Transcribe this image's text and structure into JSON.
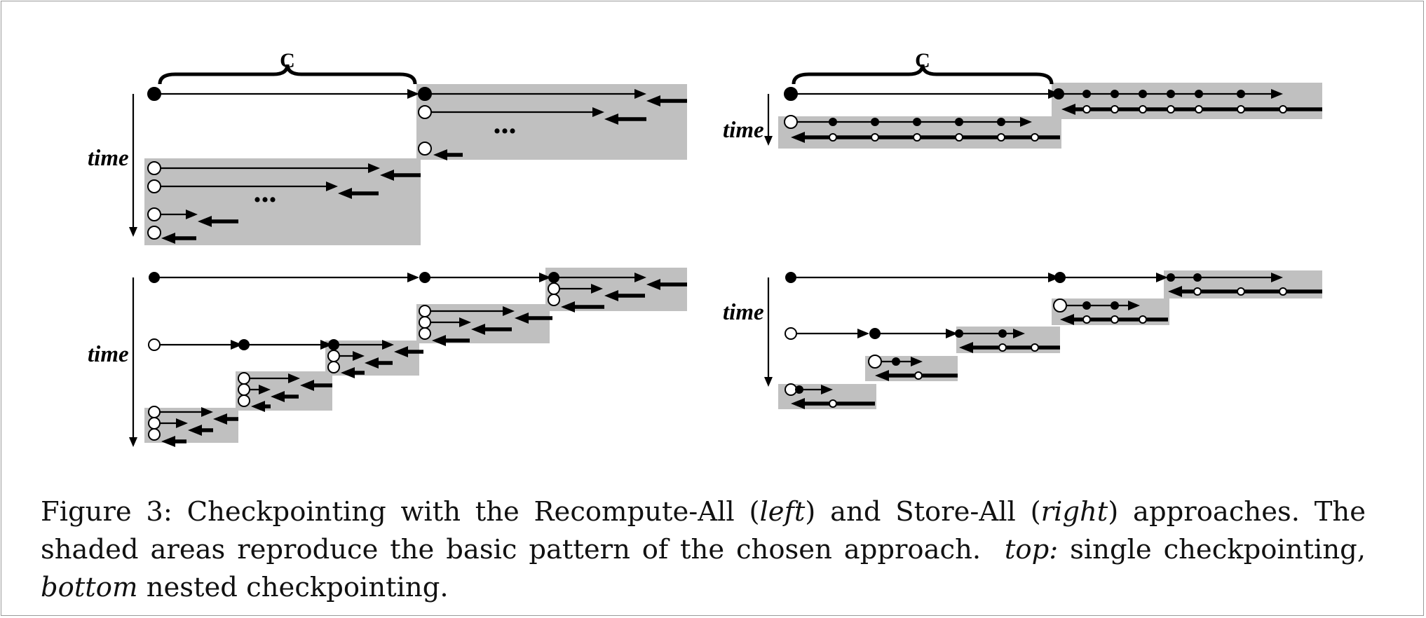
{
  "figure": {
    "labels": {
      "time": "time",
      "c": "C",
      "ellipsis": "..."
    },
    "colors": {
      "shade": "#c0c0c0",
      "ink": "#000000",
      "frame": "#9a9a9a"
    }
  },
  "caption": {
    "line1_a": "Figure 3: Checkpointing with the Recompute-All (",
    "line1_left": "left",
    "line1_b": ") and Store-All (",
    "line1_right": "right",
    "line1_c": ") approaches. The",
    "line2_a": "shaded areas reproduce the basic pattern of the chosen approach.",
    "line2_top": "top:",
    "line2_b": " single checkpointing,",
    "line3_bottom": "bottom",
    "line3_b": " nested checkpointing."
  }
}
